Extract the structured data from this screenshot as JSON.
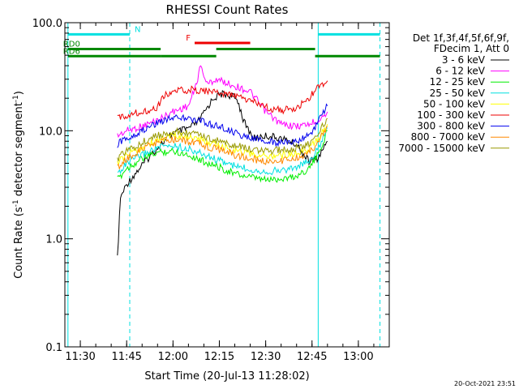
{
  "chart_data": {
    "type": "line",
    "title": "RHESSI Count Rates",
    "xlabel": "Start Time (20-Jul-13 11:28:02)",
    "ylabel": "Count Rate (s⁻¹ detector segment⁻¹)",
    "ylabel_main": "Count Rate (s",
    "ylabel_sup1": "-1",
    "ylabel_mid": " detector segment",
    "ylabel_sup2": "-1",
    "ylabel_end": ")",
    "x_scale": "time",
    "y_scale": "log",
    "xlim": [
      "11:25",
      "13:10"
    ],
    "ylim": [
      0.1,
      100
    ],
    "x_ticks": [
      "11:30",
      "11:45",
      "12:00",
      "12:15",
      "12:30",
      "12:45",
      "13:00"
    ],
    "y_ticks": [
      "0.1",
      "1.0",
      "10.0",
      "100.0"
    ],
    "grid": false,
    "legend_position": "right",
    "legend_header": [
      "Det 1f,3f,4f,5f,6f,9f,",
      "FDecim 1, Att 0"
    ],
    "timestamp": "20-Oct-2021 23:51",
    "vertical_markers": [
      {
        "time": "11:26",
        "style": "solid",
        "color": "#00e0e0"
      },
      {
        "time": "11:46",
        "style": "dashed",
        "color": "#00e0e0"
      },
      {
        "time": "12:47",
        "style": "solid",
        "color": "#00e0e0"
      },
      {
        "time": "13:07",
        "style": "dashed",
        "color": "#00e0e0"
      }
    ],
    "flag_bars": [
      {
        "label": "N",
        "color": "#00e0e0",
        "value": 78,
        "segments": [
          [
            "11:26",
            "11:46"
          ],
          [
            "12:47",
            "13:07"
          ]
        ]
      },
      {
        "label": "RD0",
        "color": "#008800",
        "value": 57,
        "segments": [
          [
            "11:26",
            "11:56"
          ],
          [
            "12:14",
            "12:46"
          ]
        ]
      },
      {
        "label": "RD6",
        "color": "#008800",
        "value": 49,
        "segments": [
          [
            "11:26",
            "11:56"
          ],
          [
            "11:56",
            "12:14"
          ],
          [
            "12:46",
            "13:07"
          ]
        ]
      },
      {
        "label": "F",
        "color": "#ee0000",
        "value": 65,
        "segments": [
          [
            "12:07",
            "12:25"
          ]
        ]
      }
    ],
    "series": [
      {
        "name": "3 - 6 keV",
        "color": "#000000",
        "x": [
          "11:42",
          "11:43",
          "11:45",
          "11:50",
          "11:55",
          "12:00",
          "12:05",
          "12:08",
          "12:10",
          "12:13",
          "12:16",
          "12:19",
          "12:21",
          "12:23",
          "12:26",
          "12:30",
          "12:35",
          "12:40",
          "12:44",
          "12:47",
          "12:50"
        ],
        "values": [
          0.65,
          2.4,
          3.2,
          4.8,
          7.0,
          9.5,
          10.5,
          12.0,
          14.5,
          20.0,
          22.0,
          21.0,
          19.0,
          12.0,
          8.5,
          9.0,
          8.5,
          7.5,
          5.2,
          5.6,
          8.0
        ]
      },
      {
        "name": "6 - 12 keV",
        "color": "#ff00ff",
        "x": [
          "11:42",
          "11:45",
          "11:50",
          "11:55",
          "12:00",
          "12:05",
          "12:07",
          "12:09",
          "12:11",
          "12:14",
          "12:20",
          "12:25",
          "12:30",
          "12:35",
          "12:40",
          "12:44",
          "12:47",
          "12:50"
        ],
        "values": [
          9.0,
          10.0,
          11.0,
          12.5,
          15.0,
          17.0,
          24.0,
          40.0,
          27.0,
          30.0,
          26.0,
          23.0,
          15.0,
          11.5,
          11.0,
          11.5,
          12.5,
          15.0
        ]
      },
      {
        "name": "12 - 25 keV",
        "color": "#00ee00",
        "x": [
          "11:42",
          "11:45",
          "11:50",
          "11:55",
          "12:00",
          "12:05",
          "12:10",
          "12:15",
          "12:20",
          "12:25",
          "12:30",
          "12:35",
          "12:40",
          "12:44",
          "12:47",
          "12:50"
        ],
        "values": [
          3.5,
          4.5,
          5.5,
          6.3,
          6.5,
          6.0,
          5.2,
          4.6,
          4.0,
          3.7,
          3.5,
          3.6,
          3.8,
          4.5,
          6.0,
          10.0
        ]
      },
      {
        "name": "25 - 50 keV",
        "color": "#00e0e0",
        "x": [
          "11:42",
          "11:45",
          "11:50",
          "11:55",
          "12:00",
          "12:05",
          "12:10",
          "12:15",
          "12:20",
          "12:25",
          "12:30",
          "12:35",
          "12:40",
          "12:44",
          "12:47",
          "12:50"
        ],
        "values": [
          4.0,
          5.0,
          6.0,
          7.0,
          7.3,
          6.8,
          6.0,
          5.3,
          4.7,
          4.4,
          4.2,
          4.3,
          4.6,
          5.2,
          6.8,
          10.5
        ]
      },
      {
        "name": "50 - 100 keV",
        "color": "#ffff00",
        "x": [
          "11:42",
          "11:45",
          "11:50",
          "11:55",
          "12:00",
          "12:05",
          "12:10",
          "12:15",
          "12:20",
          "12:25",
          "12:30",
          "12:35",
          "12:40",
          "12:44",
          "12:47",
          "12:50"
        ],
        "values": [
          5.0,
          6.0,
          7.0,
          8.2,
          9.0,
          8.8,
          8.0,
          7.2,
          6.6,
          6.1,
          5.8,
          5.9,
          6.2,
          6.8,
          8.5,
          11.5
        ]
      },
      {
        "name": "100 - 300 keV",
        "color": "#ee0000",
        "x": [
          "11:42",
          "11:45",
          "11:50",
          "11:55",
          "11:57",
          "12:00",
          "12:05",
          "12:10",
          "12:15",
          "12:20",
          "12:25",
          "12:30",
          "12:35",
          "12:40",
          "12:44",
          "12:47",
          "12:50"
        ],
        "values": [
          13.0,
          14.0,
          15.0,
          16.5,
          21.0,
          23.0,
          24.0,
          23.5,
          22.5,
          21.0,
          19.0,
          16.5,
          15.5,
          16.0,
          20.0,
          25.0,
          29.0
        ]
      },
      {
        "name": "300 - 800 keV",
        "color": "#0000ee",
        "x": [
          "11:42",
          "11:45",
          "11:50",
          "11:55",
          "12:00",
          "12:05",
          "12:10",
          "12:15",
          "12:20",
          "12:25",
          "12:30",
          "12:35",
          "12:40",
          "12:44",
          "12:47",
          "12:50"
        ],
        "values": [
          7.5,
          8.5,
          10.0,
          12.0,
          13.5,
          13.0,
          12.0,
          11.0,
          9.5,
          8.5,
          8.0,
          7.7,
          8.0,
          9.0,
          12.0,
          17.0
        ]
      },
      {
        "name": "800 - 7000 keV",
        "color": "#ff8800",
        "x": [
          "11:42",
          "11:45",
          "11:50",
          "11:55",
          "12:00",
          "12:05",
          "12:10",
          "12:15",
          "12:20",
          "12:25",
          "12:30",
          "12:35",
          "12:40",
          "12:44",
          "12:47",
          "12:50"
        ],
        "values": [
          4.5,
          5.5,
          6.8,
          7.8,
          8.3,
          8.0,
          7.3,
          6.7,
          6.0,
          5.5,
          5.2,
          5.3,
          5.6,
          6.2,
          7.8,
          11.0
        ]
      },
      {
        "name": "7000 - 15000 keV",
        "color": "#999900",
        "x": [
          "11:42",
          "11:45",
          "11:50",
          "11:55",
          "12:00",
          "12:05",
          "12:10",
          "12:15",
          "12:20",
          "12:25",
          "12:30",
          "12:35",
          "12:40",
          "12:44",
          "12:47",
          "12:50"
        ],
        "values": [
          5.5,
          6.5,
          7.8,
          9.0,
          9.8,
          9.5,
          8.8,
          8.0,
          7.3,
          6.8,
          6.5,
          6.6,
          6.9,
          7.5,
          9.5,
          13.0
        ]
      }
    ]
  }
}
